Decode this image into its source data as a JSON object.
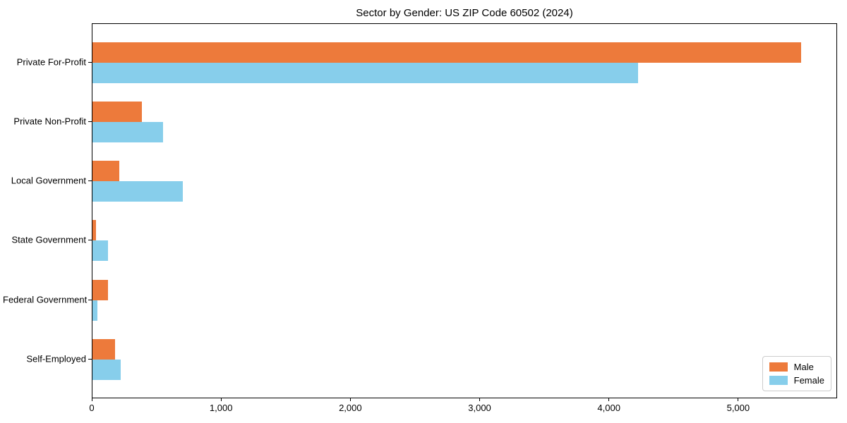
{
  "chart_data": {
    "type": "bar",
    "orientation": "horizontal",
    "title": "Sector by Gender: US ZIP Code 60502 (2024)",
    "categories": [
      "Private For-Profit",
      "Private Non-Profit",
      "Local Government",
      "State Government",
      "Federal Government",
      "Self-Employed"
    ],
    "series": [
      {
        "name": "Male",
        "color": "#ed7a3b",
        "values": [
          5490,
          385,
          210,
          30,
          120,
          175
        ]
      },
      {
        "name": "Female",
        "color": "#87ceeb",
        "values": [
          4230,
          545,
          700,
          120,
          40,
          220
        ]
      }
    ],
    "xlabel": "",
    "ylabel": "",
    "xlim": [
      0,
      5765
    ],
    "x_ticks": [
      0,
      1000,
      2000,
      3000,
      4000,
      5000
    ],
    "x_tick_labels": [
      "0",
      "1,000",
      "2,000",
      "3,000",
      "4,000",
      "5,000"
    ],
    "grid": false,
    "legend_position": "lower right",
    "background_color": "#ffffff",
    "spine_color": "#000000"
  }
}
